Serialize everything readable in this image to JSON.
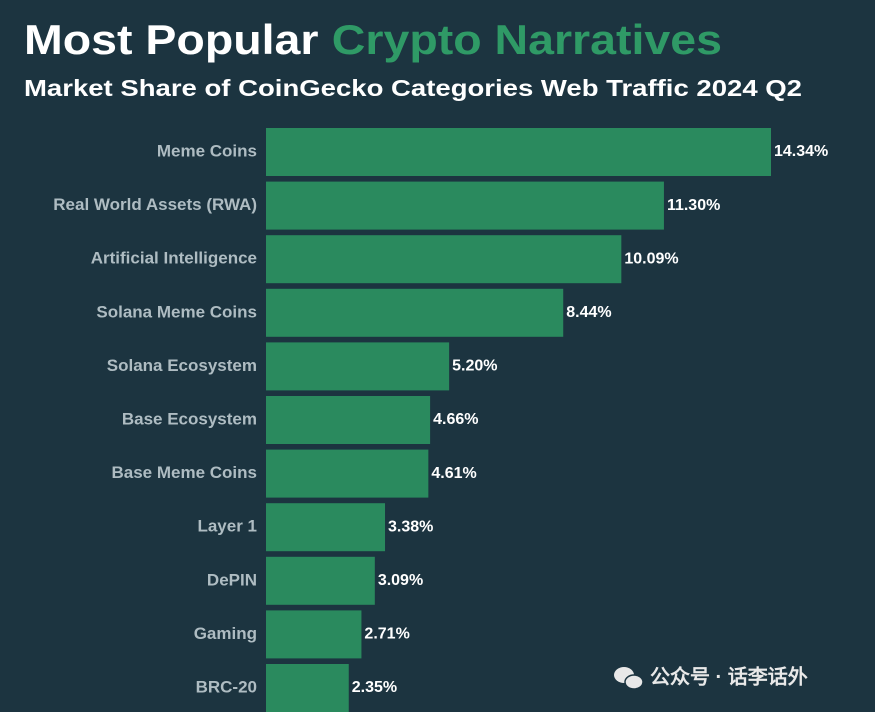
{
  "chart_data": {
    "type": "hbar",
    "title": "Most Popular",
    "title_highlight": "Crypto Narratives",
    "subtitle": "Market Share of CoinGecko Categories Web Traffic 2024 Q2",
    "categories": [
      "Meme Coins",
      "Real World Assets (RWA)",
      "Artificial Intelligence",
      "Solana Meme Coins",
      "Solana Ecosystem",
      "Base Ecosystem",
      "Base Meme Coins",
      "Layer 1",
      "DePIN",
      "Gaming",
      "BRC-20"
    ],
    "values": [
      14.34,
      11.3,
      10.09,
      8.44,
      5.2,
      4.66,
      4.61,
      3.38,
      3.09,
      2.71,
      2.35
    ],
    "value_labels": [
      "14.34%",
      "11.30%",
      "10.09%",
      "8.44%",
      "5.20%",
      "4.66%",
      "4.61%",
      "3.38%",
      "3.09%",
      "2.71%",
      "2.35%"
    ],
    "color": "#2a8a5e",
    "watermark": "公众号 · 话李话外"
  }
}
